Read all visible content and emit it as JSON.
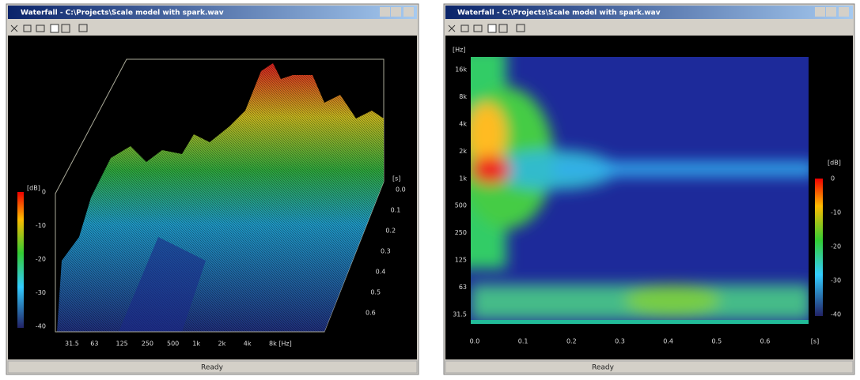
{
  "windows": [
    {
      "title": "Waterfall - C:\\Projects\\Scale model with spark.wav",
      "status": "Ready",
      "plot": {
        "colorbar_unit": "[dB]",
        "colorbar_labels": [
          "0",
          "-10",
          "-20",
          "-30",
          "-40"
        ],
        "x_labels": [
          "31.5",
          "63",
          "125",
          "250",
          "500",
          "1k",
          "2k",
          "4k",
          "8k [Hz]"
        ],
        "depth_unit": "[s]",
        "depth_labels": [
          "0.0",
          "0.1",
          "0.2",
          "0.3",
          "0.4",
          "0.5",
          "0.6"
        ]
      }
    },
    {
      "title": "Waterfall - C:\\Projects\\Scale model with spark.wav",
      "status": "Ready",
      "plot": {
        "y_unit": "[Hz]",
        "y_labels": [
          "16k",
          "8k",
          "4k",
          "2k",
          "1k",
          "500",
          "250",
          "125",
          "63",
          "31.5"
        ],
        "x_labels": [
          "0.0",
          "0.1",
          "0.2",
          "0.3",
          "0.4",
          "0.5",
          "0.6"
        ],
        "x_unit": "[s]",
        "colorbar_unit": "[dB]",
        "colorbar_labels": [
          "0",
          "-10",
          "-20",
          "-30",
          "-40"
        ]
      }
    }
  ]
}
